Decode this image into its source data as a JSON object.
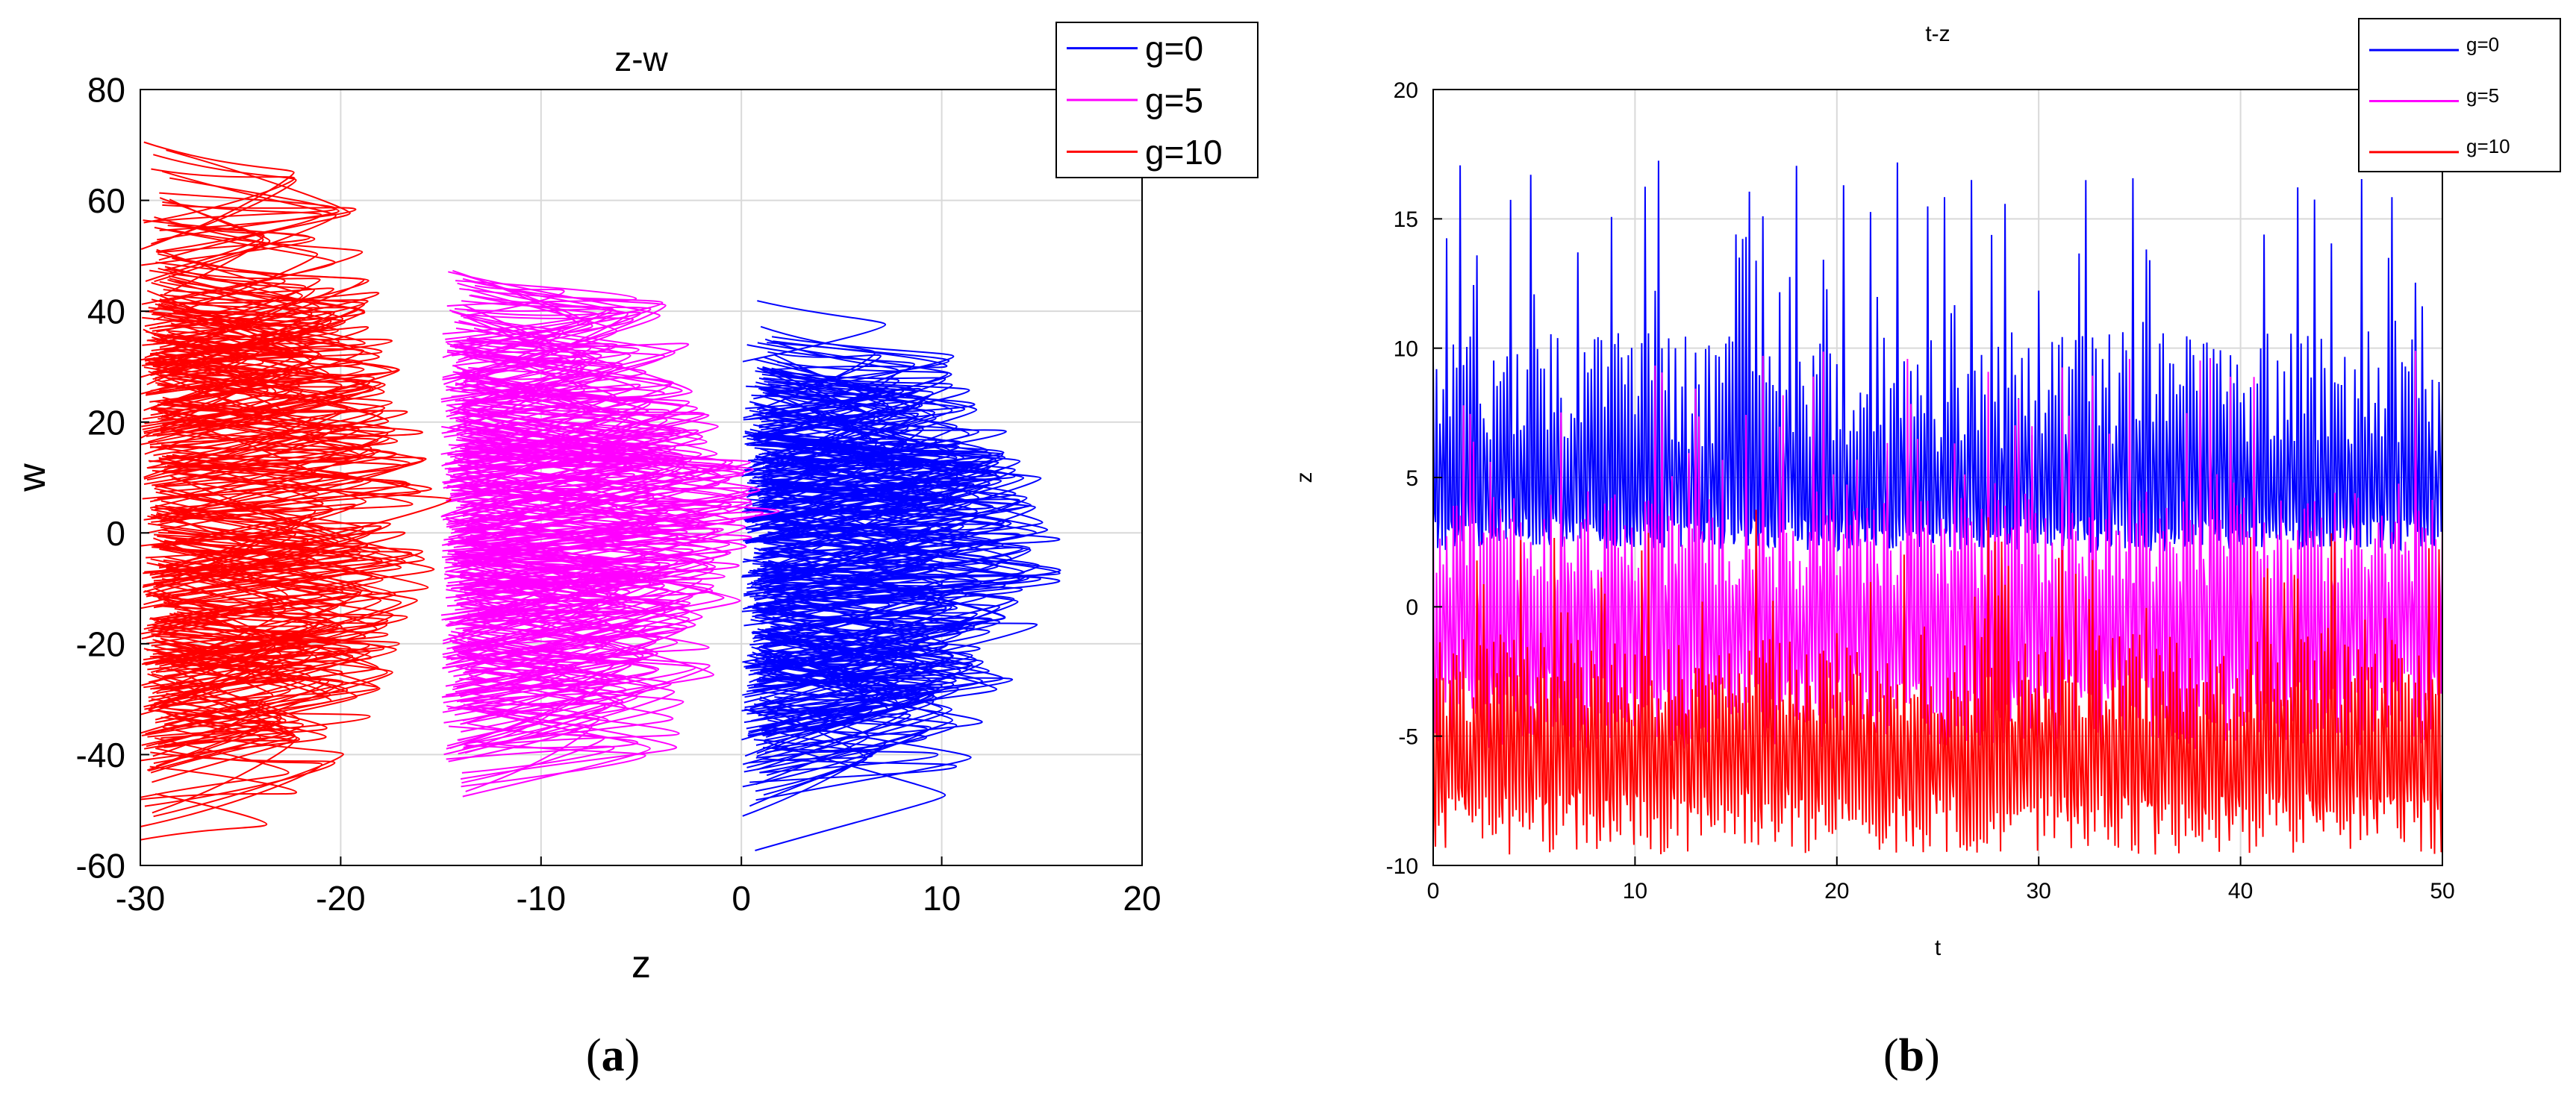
{
  "colors": {
    "g0": "#0000ff",
    "g5": "#ff00ff",
    "g10": "#ff0000",
    "grid": "#d9d9d9",
    "axis": "#000000",
    "background": "#ffffff"
  },
  "captions": {
    "a": "a",
    "b": "b"
  },
  "chart_data": [
    {
      "id": "a",
      "type": "line",
      "title": "z-w",
      "xlabel": "z",
      "ylabel": "w",
      "xlim": [
        -30,
        20
      ],
      "ylim": [
        -60,
        80
      ],
      "xticks": [
        -30,
        -20,
        -10,
        0,
        10,
        20
      ],
      "yticks": [
        -60,
        -40,
        -20,
        0,
        20,
        40,
        60,
        80
      ],
      "xtick_labels": [
        "-30",
        "-20",
        "-10",
        "0",
        "10",
        "20"
      ],
      "ytick_labels": [
        "-60",
        "-40",
        "-20",
        "0",
        "20",
        "40",
        "60",
        "80"
      ],
      "grid": true,
      "legend": "top-right",
      "series": [
        {
          "name": "g=0",
          "color_key": "g0",
          "z_range": [
            0,
            16
          ],
          "w_range": [
            -48,
            38
          ]
        },
        {
          "name": "g=5",
          "color_key": "g5",
          "z_range": [
            -15,
            1
          ],
          "w_range": [
            -46,
            49
          ]
        },
        {
          "name": "g=10",
          "color_key": "g10",
          "z_range": [
            -30,
            -15
          ],
          "w_range": [
            -56,
            63
          ]
        }
      ]
    },
    {
      "id": "b",
      "type": "line",
      "title": "t-z",
      "xlabel": "t",
      "ylabel": "z",
      "xlim": [
        0,
        50
      ],
      "ylim": [
        -10,
        20
      ],
      "xticks": [
        0,
        10,
        20,
        30,
        40,
        50
      ],
      "yticks": [
        -10,
        -5,
        0,
        5,
        10,
        15,
        20
      ],
      "xtick_labels": [
        "0",
        "10",
        "20",
        "30",
        "40",
        "50"
      ],
      "ytick_labels": [
        "-10",
        "-5",
        "0",
        "5",
        "10",
        "15",
        "20"
      ],
      "grid": true,
      "legend": "top-right",
      "series": [
        {
          "name": "g=0",
          "color_key": "g0",
          "baseline": 4,
          "range": [
            2,
            17.3
          ]
        },
        {
          "name": "g=5",
          "color_key": "g5",
          "baseline": -1,
          "range": [
            -6,
            10
          ]
        },
        {
          "name": "g=10",
          "color_key": "g10",
          "baseline": -6,
          "range": [
            -10,
            4
          ]
        }
      ]
    }
  ]
}
